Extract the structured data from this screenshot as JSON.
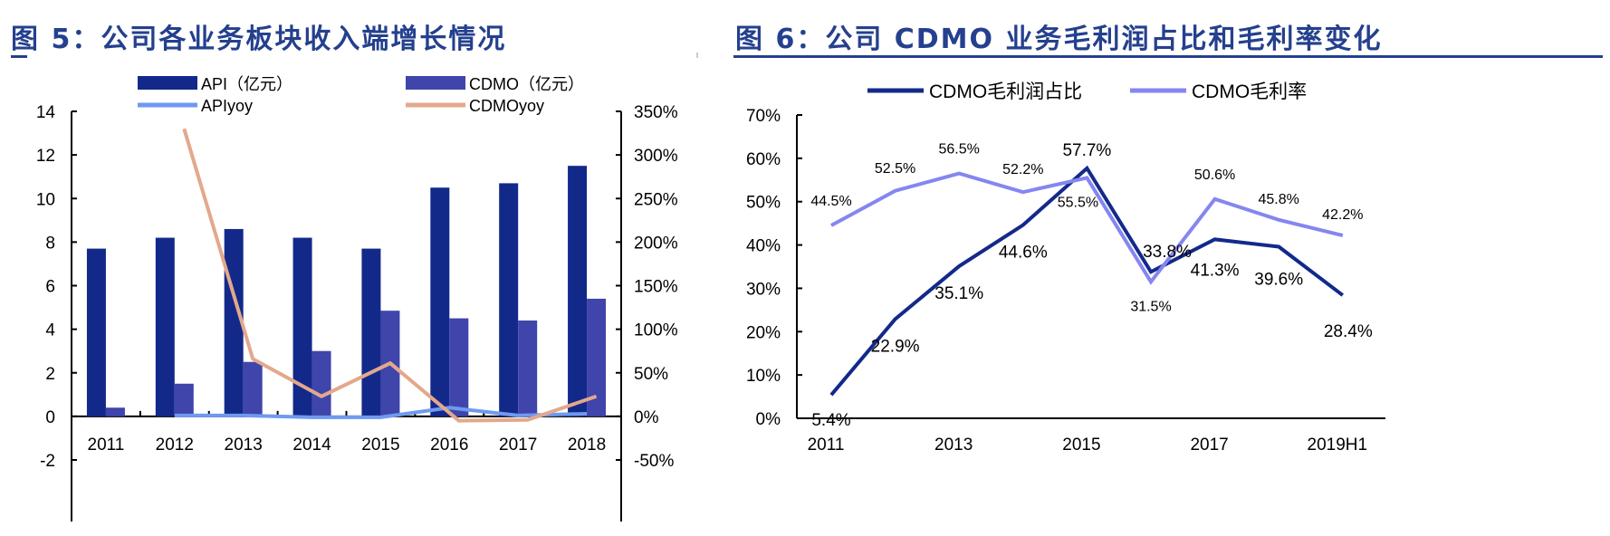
{
  "titles": {
    "left": "图 5：公司各业务板块收入端增长情况",
    "right": "图 6：公司 CDMO 业务毛利润占比和毛利率变化"
  },
  "chart_data": [
    {
      "type": "bar",
      "title": "",
      "categories": [
        "2011",
        "2012",
        "2013",
        "2014",
        "2015",
        "2016",
        "2017",
        "2018"
      ],
      "ylim": [
        -2,
        14
      ],
      "yticks": [
        "14",
        "12",
        "10",
        "8",
        "6",
        "4",
        "2",
        "0",
        "-2"
      ],
      "y2lim": [
        -50,
        350
      ],
      "y2ticks": [
        "350%",
        "300%",
        "250%",
        "200%",
        "150%",
        "100%",
        "50%",
        "0%",
        "-50%"
      ],
      "legend": "top",
      "grid": false,
      "series": [
        {
          "name": "API（亿元）",
          "kind": "bar",
          "axis": "left",
          "color": "#13298a",
          "values": [
            7.7,
            8.2,
            8.6,
            8.2,
            7.7,
            10.5,
            10.7,
            11.5
          ]
        },
        {
          "name": "CDMO（亿元）",
          "kind": "bar",
          "axis": "left",
          "color": "#3f45aa",
          "values": [
            0.4,
            1.5,
            2.5,
            3.0,
            4.85,
            4.5,
            4.4,
            5.4
          ]
        },
        {
          "name": "APIyoy",
          "kind": "line",
          "axis": "right",
          "color": "#6f9af0",
          "values": [
            null,
            1,
            1,
            -1,
            -1,
            10,
            1,
            3
          ]
        },
        {
          "name": "CDMOyoy",
          "kind": "line",
          "axis": "right",
          "color": "#e3a88c",
          "values": [
            null,
            330,
            66,
            23,
            61,
            -5,
            -4,
            23
          ]
        }
      ]
    },
    {
      "type": "line",
      "title": "",
      "categories": [
        "2011",
        "2012",
        "2013",
        "2014",
        "2015",
        "2016",
        "2017",
        "2018",
        "2019H1"
      ],
      "xticklabels": [
        "2011",
        "",
        "2013",
        "",
        "2015",
        "",
        "2017",
        "",
        "2019H1"
      ],
      "ylim": [
        0,
        70
      ],
      "yticks": [
        "70%",
        "60%",
        "50%",
        "40%",
        "30%",
        "20%",
        "10%",
        "0%"
      ],
      "legend": "top",
      "grid": false,
      "series": [
        {
          "name": "CDMO毛利润占比",
          "color": "#13298a",
          "values": [
            5.4,
            22.9,
            35.1,
            44.6,
            57.7,
            33.8,
            41.3,
            39.6,
            28.4
          ],
          "labels": [
            "5.4%",
            "22.9%",
            "35.1%",
            "44.6%",
            "57.7%",
            "33.8%",
            "41.3%",
            "39.6%",
            "28.4%"
          ]
        },
        {
          "name": "CDMO毛利率",
          "color": "#8586f0",
          "values": [
            44.5,
            52.5,
            56.5,
            52.2,
            55.5,
            31.5,
            50.6,
            45.8,
            42.2
          ],
          "labels": [
            "44.5%",
            "52.5%",
            "56.5%",
            "52.2%",
            "55.5%",
            "31.5%",
            "50.6%",
            "45.8%",
            "42.2%"
          ]
        }
      ]
    }
  ]
}
